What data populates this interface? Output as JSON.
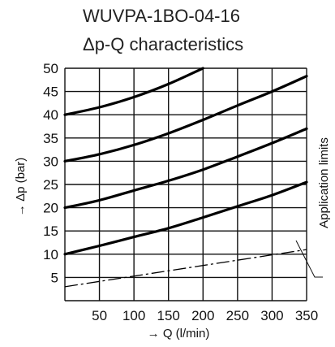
{
  "chart_data": {
    "type": "line",
    "title": "WUVPA-1BO-04-16",
    "subtitle": "Δp-Q characteristics",
    "xlabel": "→ Q (l/min)",
    "ylabel": "→ Δp (bar)",
    "xlim": [
      0,
      350
    ],
    "ylim": [
      0,
      50
    ],
    "x_ticks": [
      50,
      100,
      150,
      200,
      250,
      300,
      350
    ],
    "y_ticks": [
      5,
      10,
      15,
      20,
      25,
      30,
      35,
      40,
      45,
      50
    ],
    "grid": true,
    "series": [
      {
        "x": [
          0,
          50,
          100,
          150,
          200,
          250,
          300,
          350
        ],
        "y": [
          10,
          11.8,
          13.7,
          15.6,
          17.9,
          20.3,
          22.7,
          25.5
        ]
      },
      {
        "x": [
          0,
          50,
          100,
          150,
          200,
          250,
          300,
          350
        ],
        "y": [
          20,
          21.6,
          23.7,
          25.8,
          28.2,
          31.0,
          33.9,
          37.0
        ]
      },
      {
        "x": [
          0,
          50,
          100,
          150,
          200,
          250,
          300,
          350
        ],
        "y": [
          30,
          31.5,
          33.5,
          36.0,
          38.9,
          42.0,
          45.0,
          48.3
        ]
      },
      {
        "x": [
          0,
          50,
          100,
          150,
          200
        ],
        "y": [
          40,
          41.6,
          43.8,
          46.6,
          50
        ]
      }
    ],
    "application_limits": {
      "x": [
        0,
        350
      ],
      "y": [
        3,
        11
      ]
    },
    "annotation": "Application limits"
  }
}
